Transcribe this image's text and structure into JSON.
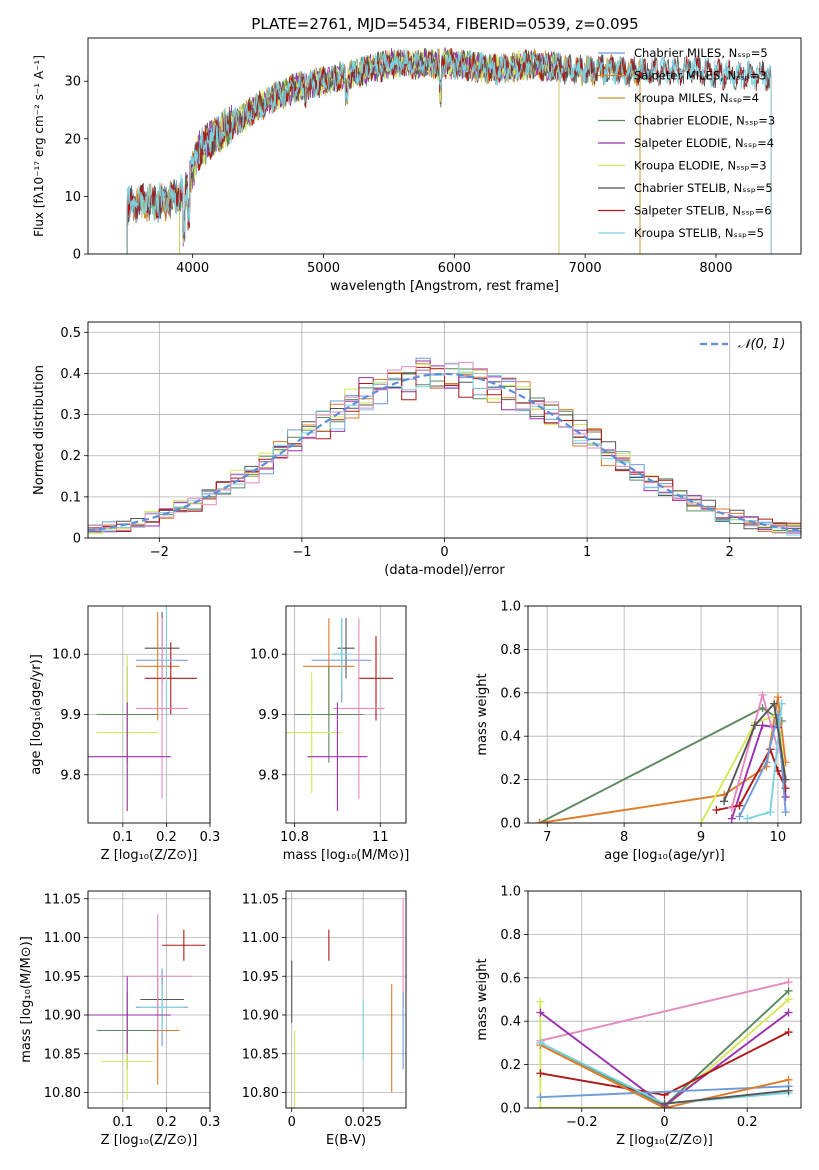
{
  "title": "PLATE=2761, MJD=54534, FIBERID=0539, z=0.095",
  "colors": {
    "Chabrier MILES": "#6e9bd9",
    "Salpeter MILES": "#e07b2a",
    "Kroupa MILES": "#c79520",
    "Chabrier ELODIE": "#5a8a5e",
    "Salpeter ELODIE": "#9b2fae",
    "Kroupa ELODIE": "#d4e85a",
    "Chabrier STELIB": "#555555",
    "Salpeter STELIB": "#b01818",
    "Kroupa STELIB": "#7ad3e0",
    "gauss": "#5b8fd9",
    "pink": "#e48bbf"
  },
  "chart_data": [
    {
      "type": "line",
      "title": "PLATE=2761, MJD=54534, FIBERID=0539, z=0.095",
      "xlabel": "wavelength [Angstrom, rest frame]",
      "ylabel": "Flux [fλ10⁻¹⁷ erg cm⁻² s⁻¹ A⁻¹]",
      "xlim": [
        3200,
        8650
      ],
      "ylim": [
        0,
        37.5
      ],
      "xticks": [
        4000,
        5000,
        6000,
        7000,
        8000
      ],
      "yticks": [
        0,
        10,
        20,
        30
      ],
      "legend_position": "right",
      "series": [
        {
          "name": "Chabrier MILES, N_SSP=5",
          "color": "#6e9bd9",
          "lambda_range": [
            3500,
            7420
          ]
        },
        {
          "name": "Salpeter MILES, N_SSP=3",
          "color": "#e07b2a",
          "lambda_range": [
            3500,
            7420
          ]
        },
        {
          "name": "Kroupa MILES, N_SSP=4",
          "color": "#c79520",
          "lambda_range": [
            3500,
            7420
          ]
        },
        {
          "name": "Chabrier ELODIE, N_SSP=3",
          "color": "#5a8a5e",
          "lambda_range": [
            3900,
            6800
          ]
        },
        {
          "name": "Salpeter ELODIE, N_SSP=4",
          "color": "#9b2fae",
          "lambda_range": [
            3900,
            6800
          ]
        },
        {
          "name": "Kroupa ELODIE, N_SSP=3",
          "color": "#d4e85a",
          "lambda_range": [
            3900,
            6800
          ]
        },
        {
          "name": "Chabrier STELIB, N_SSP=5",
          "color": "#555555",
          "lambda_range": [
            3500,
            8420
          ]
        },
        {
          "name": "Salpeter STELIB, N_SSP=6",
          "color": "#b01818",
          "lambda_range": [
            3500,
            8420
          ]
        },
        {
          "name": "Kroupa STELIB, N_SSP=5",
          "color": "#7ad3e0",
          "lambda_range": [
            3500,
            8420
          ]
        }
      ],
      "continuum": {
        "x": [
          3480,
          3600,
          3800,
          3950,
          4050,
          4200,
          4400,
          4600,
          4800,
          5000,
          5200,
          5500,
          5800,
          6000,
          6300,
          6600,
          6900,
          7200,
          7500,
          7800,
          8100,
          8400
        ],
        "y": [
          8,
          9,
          9,
          11,
          18,
          21,
          24,
          27,
          29,
          30,
          31,
          33,
          33,
          33,
          32,
          33,
          32,
          32,
          31.5,
          32,
          31,
          31
        ]
      }
    },
    {
      "type": "area",
      "xlabel": "(data-model)/error",
      "ylabel": "Normed distribution",
      "xlim": [
        -2.5,
        2.5
      ],
      "ylim": [
        0,
        0.525
      ],
      "xticks": [
        -2,
        -1,
        0,
        1,
        2
      ],
      "yticks": [
        0.0,
        0.1,
        0.2,
        0.3,
        0.4,
        0.5
      ],
      "grid": true,
      "legend": "𝒩(0, 1)",
      "legend_position": "top-right",
      "reference_curve": "normal(0,1)",
      "bin_width": 0.1
    },
    {
      "type": "scatter",
      "xlabel": "Z [log₁₀(Z/Z⊙)]",
      "ylabel": "age  [log₁₀(age/yr)]",
      "xlim": [
        0.02,
        0.3
      ],
      "ylim": [
        9.72,
        10.08
      ],
      "xticks": [
        0.1,
        0.2,
        0.3
      ],
      "yticks": [
        9.8,
        9.9,
        10.0
      ],
      "grid": true,
      "points": [
        {
          "x": 0.19,
          "y": 10.01,
          "xerr": 0.04,
          "yerr": 0.06,
          "color": "#555555"
        },
        {
          "x": 0.19,
          "y": 9.99,
          "xerr": 0.06,
          "yerr": 0.07,
          "color": "#6e9bd9"
        },
        {
          "x": 0.18,
          "y": 9.98,
          "xerr": 0.05,
          "yerr": 0.09,
          "color": "#e07b2a"
        },
        {
          "x": 0.21,
          "y": 9.96,
          "xerr": 0.06,
          "yerr": 0.06,
          "color": "#b01818"
        },
        {
          "x": 0.2,
          "y": 9.99,
          "xerr": 0.02,
          "yerr": 0.09,
          "color": "#7ad3e0"
        },
        {
          "x": 0.19,
          "y": 9.91,
          "xerr": 0.06,
          "yerr": 0.15,
          "color": "#e48bbf"
        },
        {
          "x": 0.11,
          "y": 9.9,
          "xerr": 0.07,
          "yerr": 0.08,
          "color": "#5a8a5e"
        },
        {
          "x": 0.11,
          "y": 9.87,
          "xerr": 0.07,
          "yerr": 0.13,
          "color": "#d4e85a"
        },
        {
          "x": 0.11,
          "y": 9.83,
          "xerr": 0.1,
          "yerr": 0.09,
          "color": "#9b2fae"
        }
      ]
    },
    {
      "type": "scatter",
      "xlabel": "mass [log₁₀(M/M⊙)]",
      "xlim": [
        10.78,
        11.06
      ],
      "ylim": [
        9.72,
        10.08
      ],
      "xticks": [
        10.8,
        11.0
      ],
      "yticks": [
        9.8,
        9.9,
        10.0
      ],
      "grid": true,
      "points": [
        {
          "x": 10.92,
          "y": 10.01,
          "xerr": 0.02,
          "yerr": 0.05,
          "color": "#555555"
        },
        {
          "x": 10.91,
          "y": 9.99,
          "xerr": 0.07,
          "yerr": 0.07,
          "color": "#6e9bd9"
        },
        {
          "x": 10.88,
          "y": 9.98,
          "xerr": 0.06,
          "yerr": 0.08,
          "color": "#e07b2a"
        },
        {
          "x": 10.99,
          "y": 9.96,
          "xerr": 0.04,
          "yerr": 0.07,
          "color": "#b01818"
        },
        {
          "x": 10.91,
          "y": 10.0,
          "xerr": 0.02,
          "yerr": 0.06,
          "color": "#7ad3e0"
        },
        {
          "x": 10.95,
          "y": 9.91,
          "xerr": 0.06,
          "yerr": 0.15,
          "color": "#e48bbf"
        },
        {
          "x": 10.88,
          "y": 9.9,
          "xerr": 0.08,
          "yerr": 0.08,
          "color": "#5a8a5e"
        },
        {
          "x": 10.84,
          "y": 9.87,
          "xerr": 0.07,
          "yerr": 0.1,
          "color": "#d4e85a"
        },
        {
          "x": 10.9,
          "y": 9.83,
          "xerr": 0.07,
          "yerr": 0.09,
          "color": "#9b2fae"
        }
      ]
    },
    {
      "type": "line",
      "xlabel": "age  [log₁₀(age/yr)]",
      "ylabel": "mass weight",
      "xlim": [
        6.75,
        10.3
      ],
      "ylim": [
        0,
        1.0
      ],
      "xticks": [
        7,
        8,
        9,
        10
      ],
      "yticks": [
        0.0,
        0.2,
        0.4,
        0.6,
        0.8,
        1.0
      ],
      "grid": true,
      "series": [
        {
          "color": "#5a8a5e",
          "x": [
            6.9,
            9.8,
            10.05
          ],
          "y": [
            0.0,
            0.53,
            0.47
          ]
        },
        {
          "color": "#e07b2a",
          "x": [
            6.9,
            9.3,
            9.85,
            10.0,
            10.1
          ],
          "y": [
            0.0,
            0.13,
            0.26,
            0.58,
            0.28
          ]
        },
        {
          "color": "#d4e85a",
          "x": [
            9.0,
            9.7,
            10.0,
            10.1
          ],
          "y": [
            0.0,
            0.46,
            0.5,
            0.2
          ]
        },
        {
          "color": "#9b2fae",
          "x": [
            9.4,
            9.8,
            10.0,
            10.1
          ],
          "y": [
            0.02,
            0.45,
            0.44,
            0.12
          ]
        },
        {
          "color": "#b01818",
          "x": [
            9.2,
            9.5,
            9.9,
            10.0,
            10.1
          ],
          "y": [
            0.06,
            0.08,
            0.34,
            0.24,
            0.16
          ]
        },
        {
          "color": "#e48bbf",
          "x": [
            9.4,
            9.8,
            10.0
          ],
          "y": [
            0.07,
            0.59,
            0.34
          ]
        },
        {
          "color": "#6e9bd9",
          "x": [
            9.5,
            9.85,
            10.0,
            10.1
          ],
          "y": [
            0.03,
            0.28,
            0.5,
            0.05
          ]
        },
        {
          "color": "#7ad3e0",
          "x": [
            9.6,
            9.9,
            10.05
          ],
          "y": [
            0.02,
            0.05,
            0.55
          ]
        },
        {
          "color": "#555555",
          "x": [
            9.3,
            9.7,
            9.95,
            10.1
          ],
          "y": [
            0.1,
            0.45,
            0.55,
            0.2
          ]
        }
      ]
    },
    {
      "type": "scatter",
      "xlabel": "Z [log₁₀(Z/Z⊙)]",
      "ylabel": "mass [log₁₀(M/M⊙)]",
      "xlim": [
        0.02,
        0.3
      ],
      "ylim": [
        10.78,
        11.06
      ],
      "xticks": [
        0.1,
        0.2,
        0.3
      ],
      "yticks": [
        10.8,
        10.85,
        10.9,
        10.95,
        11.0,
        11.05
      ],
      "grid": true,
      "points": [
        {
          "x": 0.19,
          "y": 10.92,
          "xerr": 0.05,
          "yerr": 0.03,
          "color": "#555555"
        },
        {
          "x": 0.19,
          "y": 10.91,
          "xerr": 0.06,
          "yerr": 0.05,
          "color": "#6e9bd9"
        },
        {
          "x": 0.18,
          "y": 10.88,
          "xerr": 0.05,
          "yerr": 0.07,
          "color": "#e07b2a"
        },
        {
          "x": 0.24,
          "y": 10.99,
          "xerr": 0.05,
          "yerr": 0.02,
          "color": "#b01818"
        },
        {
          "x": 0.19,
          "y": 10.91,
          "xerr": 0.05,
          "yerr": 0.03,
          "color": "#7ad3e0"
        },
        {
          "x": 0.18,
          "y": 10.95,
          "xerr": 0.08,
          "yerr": 0.08,
          "color": "#e48bbf"
        },
        {
          "x": 0.11,
          "y": 10.88,
          "xerr": 0.07,
          "yerr": 0.05,
          "color": "#5a8a5e"
        },
        {
          "x": 0.11,
          "y": 10.84,
          "xerr": 0.06,
          "yerr": 0.05,
          "color": "#d4e85a"
        },
        {
          "x": 0.11,
          "y": 10.9,
          "xerr": 0.1,
          "yerr": 0.05,
          "color": "#9b2fae"
        }
      ]
    },
    {
      "type": "scatter",
      "xlabel": "E(B-V)",
      "xlim": [
        -0.002,
        0.04
      ],
      "ylim": [
        10.78,
        11.06
      ],
      "xticks": [
        0.0,
        0.025
      ],
      "yticks": [
        10.8,
        10.85,
        10.9,
        10.95,
        11.0,
        11.05
      ],
      "grid": true,
      "points": [
        {
          "x": 0.0,
          "y": 10.93,
          "yerr": 0.04,
          "color": "#555555"
        },
        {
          "x": 0.001,
          "y": 10.83,
          "yerr": 0.05,
          "color": "#d4e85a"
        },
        {
          "x": 0.013,
          "y": 10.99,
          "yerr": 0.02,
          "color": "#b01818"
        },
        {
          "x": 0.025,
          "y": 10.88,
          "yerr": 0.04,
          "color": "#7ad3e0"
        },
        {
          "x": 0.035,
          "y": 10.87,
          "yerr": 0.07,
          "color": "#e07b2a"
        },
        {
          "x": 0.039,
          "y": 10.98,
          "yerr": 0.07,
          "color": "#e48bbf"
        },
        {
          "x": 0.039,
          "y": 10.88,
          "yerr": 0.05,
          "color": "#6e9bd9"
        }
      ]
    },
    {
      "type": "line",
      "xlabel": "Z [log₁₀(Z/Z⊙)]",
      "ylabel": "mass weight",
      "xlim": [
        -0.33,
        0.33
      ],
      "ylim": [
        0,
        1.0
      ],
      "xticks": [
        -0.2,
        0.0,
        0.2
      ],
      "yticks": [
        0.0,
        0.2,
        0.4,
        0.6,
        0.8,
        1.0
      ],
      "grid": true,
      "series": [
        {
          "color": "#e48bbf",
          "x": [
            -0.3,
            0.3
          ],
          "y": [
            0.31,
            0.58
          ]
        },
        {
          "color": "#d4e85a",
          "x": [
            -0.3,
            -0.3,
            0.0,
            0.3
          ],
          "y": [
            0.49,
            0.0,
            0.0,
            0.5
          ]
        },
        {
          "color": "#5a8a5e",
          "x": [
            -0.3,
            0.0,
            0.3
          ],
          "y": [
            0.3,
            0.01,
            0.54
          ]
        },
        {
          "color": "#9b2fae",
          "x": [
            -0.3,
            0.0,
            0.3
          ],
          "y": [
            0.44,
            0.01,
            0.44
          ]
        },
        {
          "color": "#b01818",
          "x": [
            -0.3,
            0.0,
            0.3
          ],
          "y": [
            0.16,
            0.06,
            0.35
          ]
        },
        {
          "color": "#6e9bd9",
          "x": [
            -0.3,
            0.3
          ],
          "y": [
            0.05,
            0.1
          ]
        },
        {
          "color": "#e07b2a",
          "x": [
            -0.3,
            0.0,
            0.3
          ],
          "y": [
            0.29,
            0.0,
            0.13
          ]
        },
        {
          "color": "#7ad3e0",
          "x": [
            -0.3,
            0.0,
            0.3
          ],
          "y": [
            0.3,
            0.02,
            0.07
          ]
        },
        {
          "color": "#555555",
          "x": [
            0.0,
            0.3
          ],
          "y": [
            0.02,
            0.08
          ]
        }
      ]
    }
  ]
}
